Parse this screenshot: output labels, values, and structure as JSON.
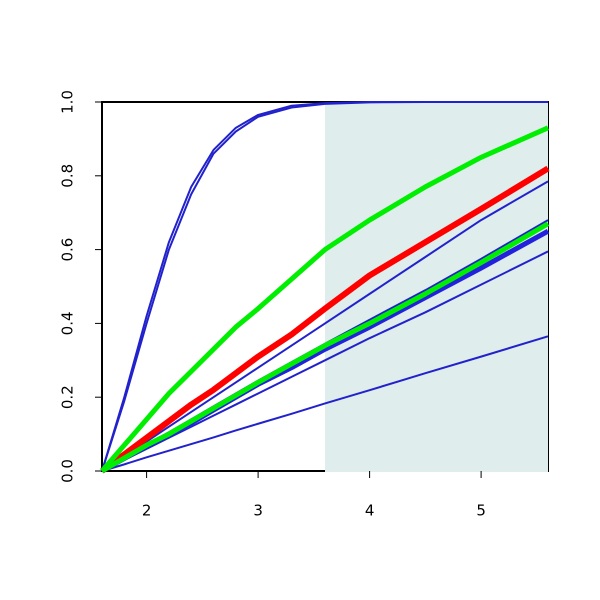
{
  "chart_data": {
    "type": "line",
    "x": [
      1.6,
      1.8,
      2,
      2.2,
      2.4,
      2.6,
      2.8,
      3,
      3.3,
      3.6,
      4,
      4.5,
      5,
      5.6
    ],
    "xlim": [
      1.6,
      5.6
    ],
    "ylim": [
      0,
      1
    ],
    "xticks": [
      2,
      3,
      4,
      5
    ],
    "yticks": [
      {
        "value": 0,
        "label": "0.0"
      },
      {
        "value": 0.2,
        "label": "0.2"
      },
      {
        "value": 0.4,
        "label": "0.4"
      },
      {
        "value": 0.6,
        "label": "0.6"
      },
      {
        "value": 0.8,
        "label": "0.8"
      },
      {
        "value": 1,
        "label": "1.0"
      }
    ],
    "shade_x": [
      3.6,
      5.6
    ],
    "shade_color": "#e0eded",
    "series": [
      {
        "color": "#2222cc",
        "width": 2,
        "values": [
          0,
          0.2,
          0.42,
          0.62,
          0.77,
          0.87,
          0.93,
          0.965,
          0.99,
          0.997,
          1,
          1,
          1,
          1
        ]
      },
      {
        "color": "#2222cc",
        "width": 2,
        "values": [
          0,
          0.19,
          0.4,
          0.6,
          0.75,
          0.86,
          0.92,
          0.96,
          0.985,
          0.995,
          0.999,
          1,
          1,
          1
        ]
      },
      {
        "color": "#2222cc",
        "width": 2,
        "values": [
          0,
          0.04,
          0.08,
          0.12,
          0.16,
          0.2,
          0.24,
          0.28,
          0.34,
          0.4,
          0.48,
          0.58,
          0.68,
          0.785
        ]
      },
      {
        "color": "#2222cc",
        "width": 2,
        "values": [
          0,
          0.035,
          0.07,
          0.105,
          0.14,
          0.175,
          0.21,
          0.245,
          0.295,
          0.345,
          0.41,
          0.49,
          0.575,
          0.68
        ]
      },
      {
        "color": "#2222cc",
        "width": 2,
        "values": [
          0,
          0.03,
          0.06,
          0.09,
          0.12,
          0.15,
          0.18,
          0.21,
          0.255,
          0.3,
          0.36,
          0.43,
          0.505,
          0.595
        ]
      },
      {
        "color": "#2222cc",
        "width": 2,
        "values": [
          0,
          0.018,
          0.037,
          0.055,
          0.073,
          0.091,
          0.11,
          0.128,
          0.155,
          0.183,
          0.219,
          0.265,
          0.31,
          0.365
        ]
      },
      {
        "color": "#ff0000",
        "width": 6,
        "values": [
          0,
          0.045,
          0.09,
          0.135,
          0.18,
          0.22,
          0.265,
          0.31,
          0.37,
          0.44,
          0.53,
          0.62,
          0.71,
          0.82
        ]
      },
      {
        "color": "#00ee00",
        "width": 5,
        "values": [
          0,
          0.07,
          0.14,
          0.21,
          0.27,
          0.33,
          0.39,
          0.44,
          0.52,
          0.6,
          0.68,
          0.77,
          0.85,
          0.93
        ]
      },
      {
        "color": "#2222dd",
        "width": 5,
        "values": [
          0,
          0.034,
          0.068,
          0.1,
          0.13,
          0.165,
          0.2,
          0.235,
          0.28,
          0.33,
          0.39,
          0.47,
          0.55,
          0.65
        ]
      },
      {
        "color": "#00ee00",
        "width": 5,
        "values": [
          0,
          0.035,
          0.07,
          0.1,
          0.135,
          0.17,
          0.205,
          0.24,
          0.29,
          0.34,
          0.4,
          0.48,
          0.565,
          0.67
        ]
      }
    ]
  }
}
